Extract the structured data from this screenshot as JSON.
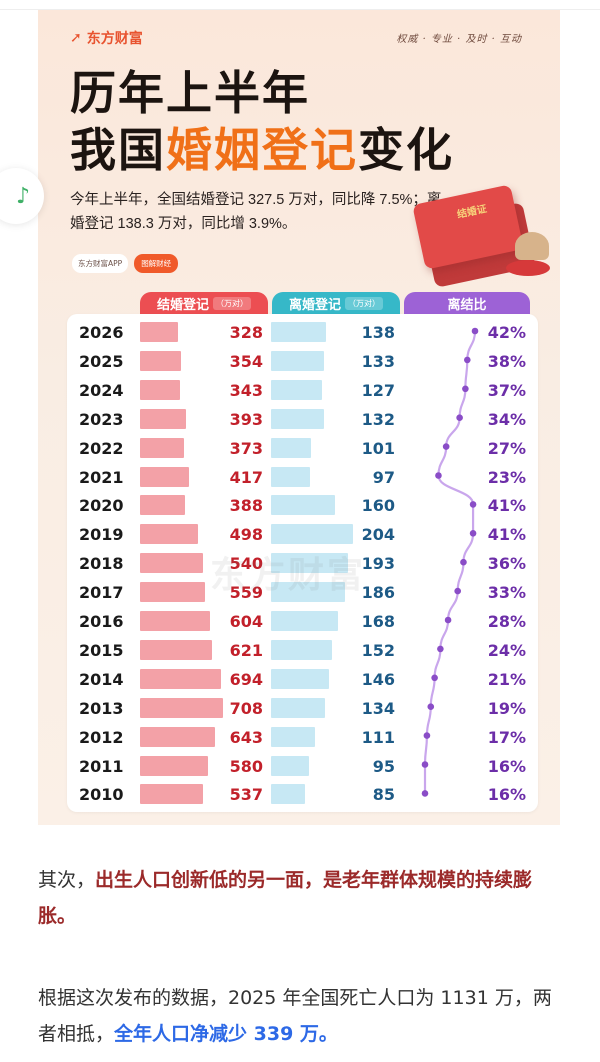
{
  "card": {
    "logo": "东方财富",
    "slogan": "权威 · 专业 · 及时 · 互动",
    "title_line1": "历年上半年",
    "title_line2_pre": "我国",
    "title_line2_highlight": "婚姻登记",
    "title_line2_post": "变化",
    "summary": "今年上半年，全国结婚登记 327.5 万对，同比降 7.5%；离婚登记 138.3 万对，同比增 3.9%。",
    "pill_app": "东方财富APP",
    "pill_tag": "图解财经",
    "book_label": "结婚证",
    "watermark": "东方财富",
    "colors": {
      "marriage": "#ec4e52",
      "divorce": "#36b8c8",
      "ratio": "#9d62d6",
      "highlight": "#f07018"
    }
  },
  "chart_data": {
    "type": "table",
    "columns": [
      "结婚登记",
      "离婚登记",
      "离结比"
    ],
    "unit": "万对",
    "rows": [
      {
        "year": "2026",
        "marriage": 328,
        "divorce": 138,
        "ratio": "42%",
        "ratio_value": 42
      },
      {
        "year": "2025",
        "marriage": 354,
        "divorce": 133,
        "ratio": "38%",
        "ratio_value": 38
      },
      {
        "year": "2024",
        "marriage": 343,
        "divorce": 127,
        "ratio": "37%",
        "ratio_value": 37
      },
      {
        "year": "2023",
        "marriage": 393,
        "divorce": 132,
        "ratio": "34%",
        "ratio_value": 34
      },
      {
        "year": "2022",
        "marriage": 373,
        "divorce": 101,
        "ratio": "27%",
        "ratio_value": 27
      },
      {
        "year": "2021",
        "marriage": 417,
        "divorce": 97,
        "ratio": "23%",
        "ratio_value": 23
      },
      {
        "year": "2020",
        "marriage": 388,
        "divorce": 160,
        "ratio": "41%",
        "ratio_value": 41
      },
      {
        "year": "2019",
        "marriage": 498,
        "divorce": 204,
        "ratio": "41%",
        "ratio_value": 41
      },
      {
        "year": "2018",
        "marriage": 540,
        "divorce": 193,
        "ratio": "36%",
        "ratio_value": 36
      },
      {
        "year": "2017",
        "marriage": 559,
        "divorce": 186,
        "ratio": "33%",
        "ratio_value": 33
      },
      {
        "year": "2016",
        "marriage": 604,
        "divorce": 168,
        "ratio": "28%",
        "ratio_value": 28
      },
      {
        "year": "2015",
        "marriage": 621,
        "divorce": 152,
        "ratio": "24%",
        "ratio_value": 24
      },
      {
        "year": "2014",
        "marriage": 694,
        "divorce": 146,
        "ratio": "21%",
        "ratio_value": 21
      },
      {
        "year": "2013",
        "marriage": 708,
        "divorce": 134,
        "ratio": "19%",
        "ratio_value": 19
      },
      {
        "year": "2012",
        "marriage": 643,
        "divorce": 111,
        "ratio": "17%",
        "ratio_value": 17
      },
      {
        "year": "2011",
        "marriage": 580,
        "divorce": 95,
        "ratio": "16%",
        "ratio_value": 16
      },
      {
        "year": "2010",
        "marriage": 537,
        "divorce": 85,
        "ratio": "16%",
        "ratio_value": 16
      }
    ]
  },
  "article": {
    "p1_pre": "其次，",
    "p1_bold": "出生人口创新低的另一面，是老年群体规模的持续膨胀。",
    "p2_pre": "根据这次发布的数据，2025 年全国死亡人口为 1131 万，两者相抵，",
    "p2_bold": "全年人口净减少 339 万。"
  },
  "music_icon": "music-note-icon"
}
